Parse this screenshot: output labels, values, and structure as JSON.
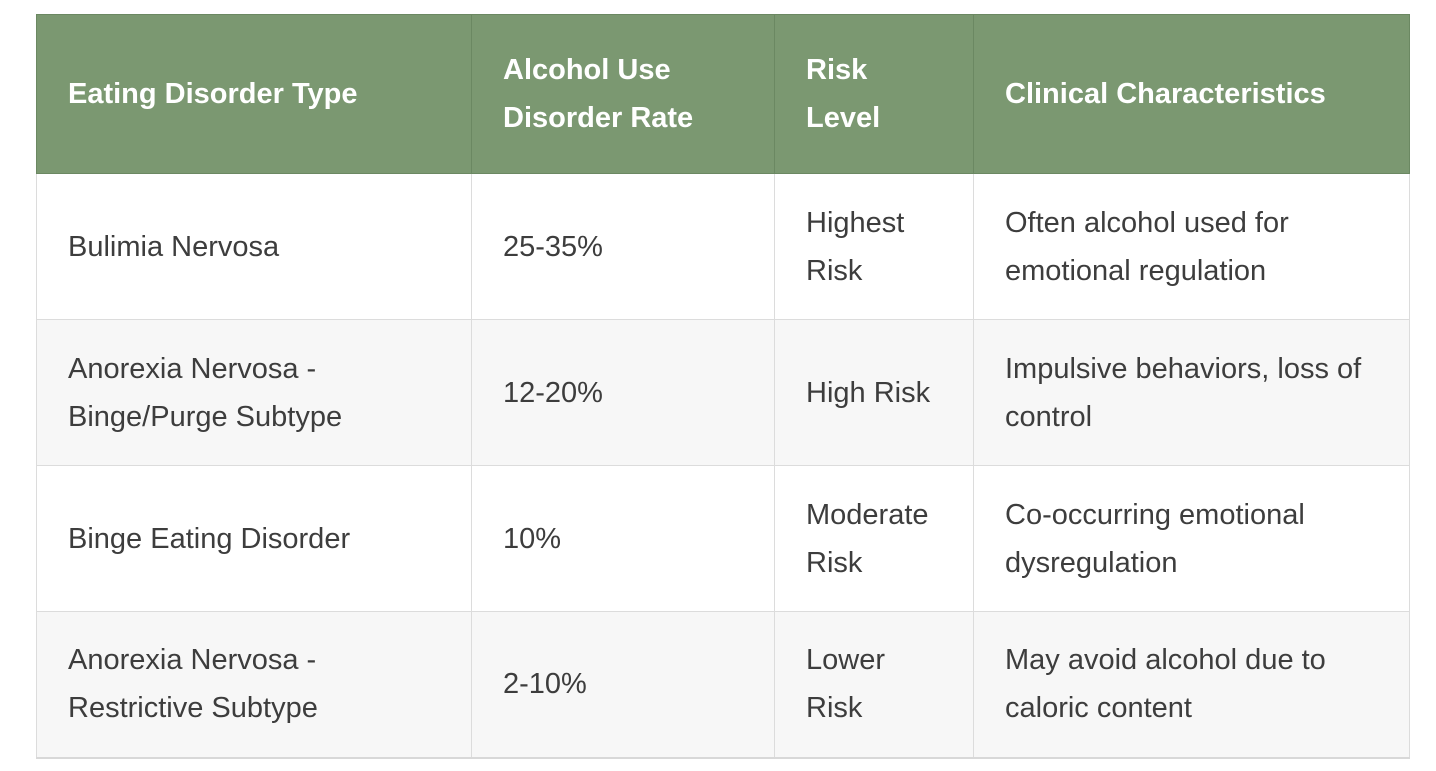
{
  "table": {
    "headers": [
      "Eating Disorder Type",
      "Alcohol Use Disorder Rate",
      "Risk Level",
      "Clinical Characteristics"
    ],
    "rows": [
      {
        "type": "Bulimia Nervosa",
        "rate": "25-35%",
        "risk": "Highest Risk",
        "characteristics": "Often alcohol used for emotional regulation"
      },
      {
        "type": "Anorexia Nervosa - Binge/Purge Subtype",
        "rate": "12-20%",
        "risk": "High Risk",
        "characteristics": "Impulsive behaviors, loss of control"
      },
      {
        "type": "Binge Eating Disorder",
        "rate": "10%",
        "risk": "Moderate Risk",
        "characteristics": "Co-occurring emotional dysregulation"
      },
      {
        "type": "Anorexia Nervosa - Restrictive Subtype",
        "rate": "2-10%",
        "risk": "Lower Risk",
        "characteristics": "May avoid alcohol due to caloric content"
      }
    ]
  },
  "colors": {
    "header_bg": "#7b9871",
    "header_text": "#ffffff",
    "row_alt_bg": "#f7f7f7",
    "border": "#dcdcdc"
  }
}
